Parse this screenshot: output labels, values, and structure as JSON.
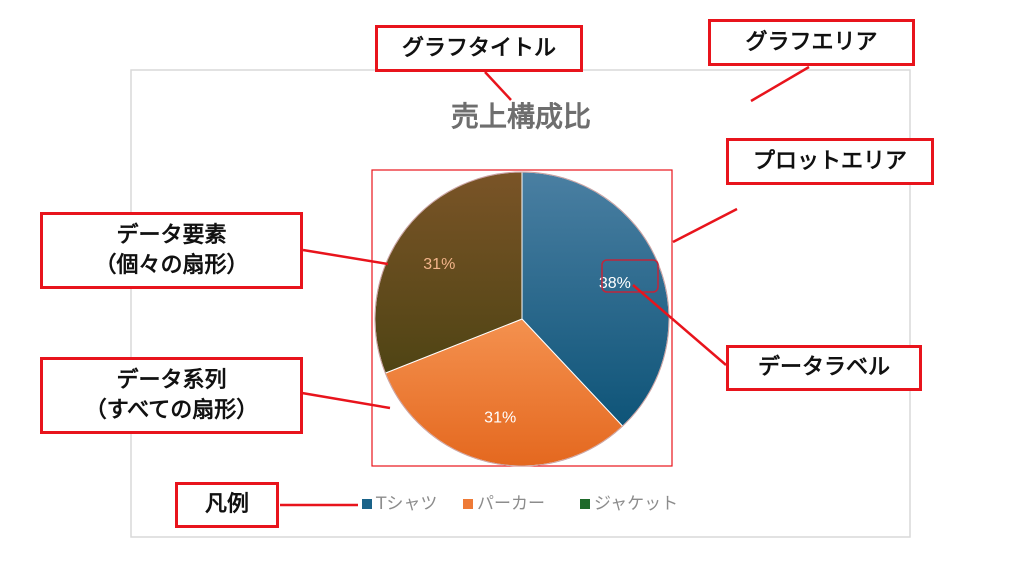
{
  "chart_data": {
    "type": "pie",
    "title": "売上構成比",
    "slices": [
      {
        "name": "Tシャツ",
        "value": 38,
        "label": "38%",
        "color": "#1a6389"
      },
      {
        "name": "パーカー",
        "value": 31,
        "label": "31%",
        "color": "#ee7a36"
      },
      {
        "name": "ジャケット",
        "value": 0,
        "label": "",
        "color": "#1e6a2a"
      },
      {
        "name": "",
        "value": 31,
        "label": "31%",
        "color": "#614a1c"
      }
    ],
    "legend": {
      "placement": "bottom",
      "entries": [
        {
          "name": "Tシャツ",
          "color": "#1a6389"
        },
        {
          "name": "パーカー",
          "color": "#ee7a36"
        },
        {
          "name": "ジャケット",
          "color": "#1e6a2a"
        }
      ]
    }
  },
  "callouts": {
    "chart_title": "グラフタイトル",
    "chart_area": "グラフエリア",
    "plot_area": "プロットエリア",
    "data_element_line1": "データ要素",
    "data_element_line2": "（個々の扇形）",
    "data_label": "データラベル",
    "data_series_line1": "データ系列",
    "data_series_line2": "（すべての扇形）",
    "legend": "凡例"
  },
  "colors": {
    "callout_border": "#e8141c",
    "plot_area_border": "#e8141c",
    "chart_area_border": "#d9d9d9",
    "title_text": "#6e6e6e",
    "legend_text": "#8c8c8c"
  }
}
